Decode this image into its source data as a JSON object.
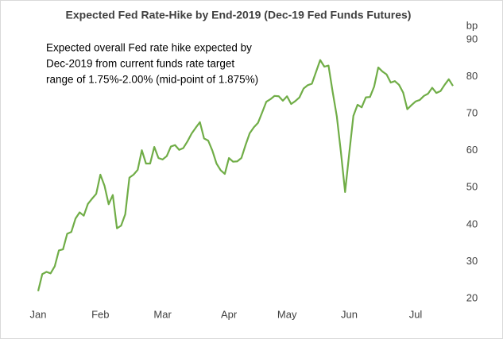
{
  "chart_data": {
    "type": "line",
    "title": "Expected Fed Rate-Hike by End-2019 (Dec-19 Fed Funds Futures)",
    "y_axis_label": "bp",
    "annotation": [
      "Expected overall Fed rate hike expected by",
      "Dec-2019 from current funds rate target",
      "range of 1.75%-2.00% (mid-point of 1.875%)"
    ],
    "categories": [
      "Jan",
      null,
      null,
      null,
      null,
      null,
      null,
      null,
      null,
      null,
      null,
      null,
      null,
      null,
      null,
      "Feb",
      null,
      null,
      null,
      null,
      null,
      null,
      null,
      null,
      null,
      null,
      null,
      null,
      null,
      null,
      "Mar",
      null,
      null,
      null,
      null,
      null,
      null,
      null,
      null,
      null,
      null,
      null,
      null,
      null,
      null,
      null,
      "Apr",
      null,
      null,
      null,
      null,
      null,
      null,
      null,
      null,
      null,
      null,
      null,
      null,
      null,
      "May",
      null,
      null,
      null,
      null,
      null,
      null,
      null,
      null,
      null,
      null,
      null,
      null,
      null,
      null,
      "Jun",
      null,
      null,
      null,
      null,
      null,
      null,
      null,
      null,
      null,
      null,
      null,
      null,
      null,
      null,
      null,
      "Jul",
      null,
      null,
      null,
      null,
      null,
      null,
      null,
      null,
      null
    ],
    "values": [
      22,
      26.6,
      27.2,
      26.8,
      28.7,
      33,
      33.3,
      37.5,
      38,
      41.6,
      43.3,
      42.4,
      45.6,
      47,
      48.3,
      53.5,
      50.5,
      45.5,
      48,
      39,
      39.7,
      42.8,
      52.7,
      53.5,
      54.8,
      60.1,
      56.5,
      56.5,
      61,
      58,
      57.6,
      58.5,
      61.1,
      61.5,
      60.2,
      60.7,
      62.5,
      64.6,
      66.2,
      67.7,
      63.3,
      62.7,
      60,
      56.5,
      54.7,
      53.7,
      58,
      57,
      57.1,
      58,
      61.5,
      64.7,
      66.3,
      67.5,
      70.3,
      73.2,
      73.9,
      74.8,
      74.7,
      73.5,
      74.7,
      72.6,
      73.4,
      74.4,
      76.8,
      77.7,
      78.1,
      81.3,
      84.5,
      82.7,
      83,
      75.9,
      69.3,
      59.5,
      48.8,
      59.3,
      69.4,
      72.4,
      71.7,
      74.4,
      74.5,
      77.3,
      82.5,
      81.4,
      80.6,
      78.4,
      78.8,
      77.8,
      75.7,
      71.2,
      72.3,
      73.3,
      73.7,
      74.8,
      75.4,
      77,
      75.6,
      76.1,
      77.8,
      79.3,
      77.5
    ],
    "color": "#70ad47",
    "ylim": [
      20,
      90
    ],
    "yticks": [
      20,
      30,
      40,
      50,
      60,
      70,
      80,
      90
    ],
    "y_axis_side": "right",
    "grid": false
  }
}
